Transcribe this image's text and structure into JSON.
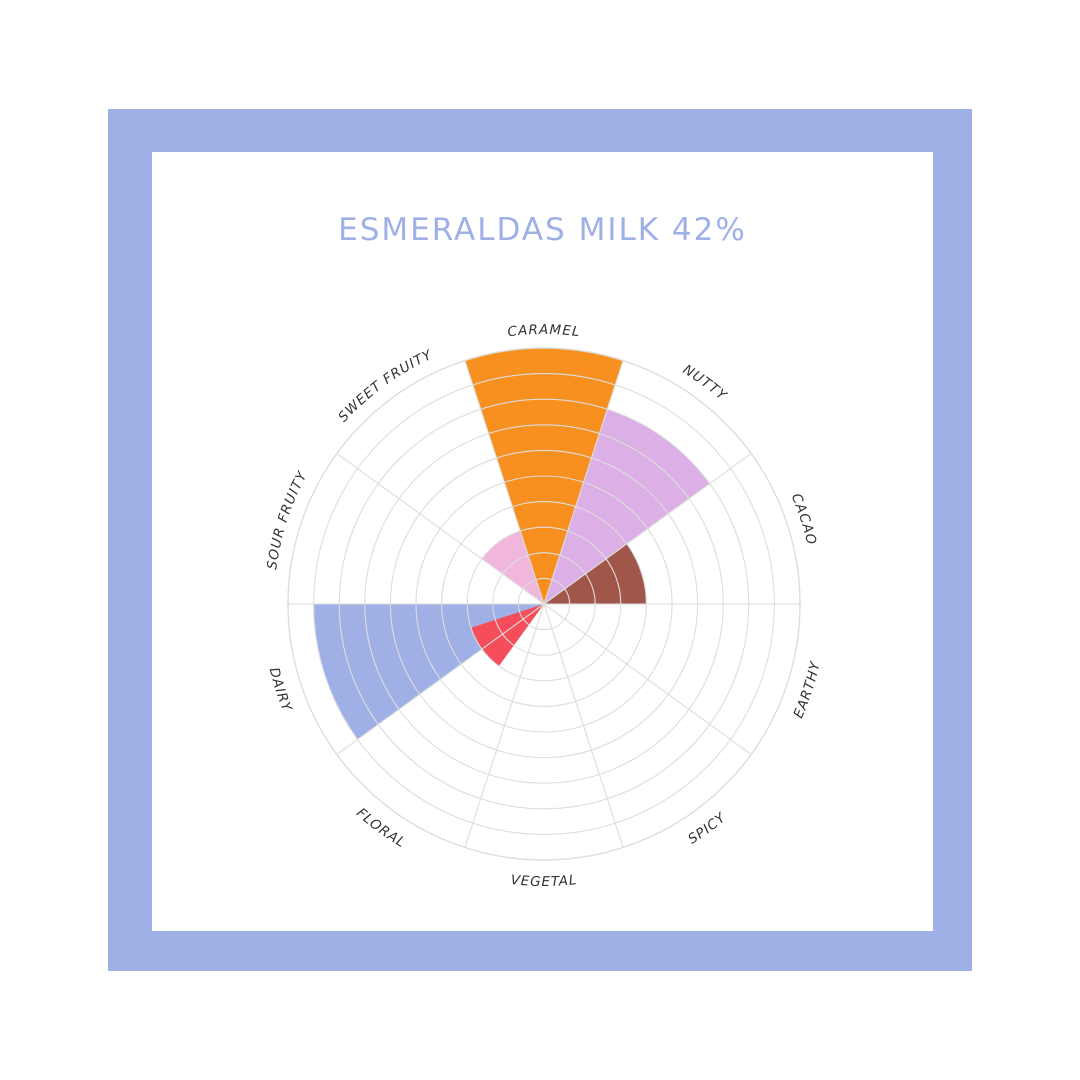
{
  "title": "ESMERALDAS MILK 42%",
  "colors": {
    "frame": "#9fb0e7",
    "title": "#9fb0e7",
    "grid": "#dddddd"
  },
  "chart_data": {
    "type": "polar-area",
    "scale_max": 10,
    "rings": 10,
    "categories": [
      {
        "name": "CARAMEL",
        "value": 10,
        "color": "#f7901e"
      },
      {
        "name": "NUTTY",
        "value": 8,
        "color": "#dcb0e6"
      },
      {
        "name": "CACAO",
        "value": 4,
        "color": "#a0574a"
      },
      {
        "name": "EARTHY",
        "value": 0,
        "color": "#cccccc"
      },
      {
        "name": "SPICY",
        "value": 0,
        "color": "#cccccc"
      },
      {
        "name": "VEGETAL",
        "value": 0,
        "color": "#cccccc"
      },
      {
        "name": "FLORAL",
        "value": 0,
        "color": "#cccccc"
      },
      {
        "name": "DAIRY",
        "value": 9,
        "color": "#9fb0e7"
      },
      {
        "name": "SOUR FRUITY",
        "value": 0,
        "color": "#cccccc"
      },
      {
        "name": "SWEET FRUITY",
        "value": 3,
        "color": "#f1b6dc"
      }
    ],
    "extra_wedges": [
      {
        "between": [
          "DAIRY",
          "FLORAL"
        ],
        "value": 3,
        "color": "#f54d5a"
      }
    ]
  }
}
